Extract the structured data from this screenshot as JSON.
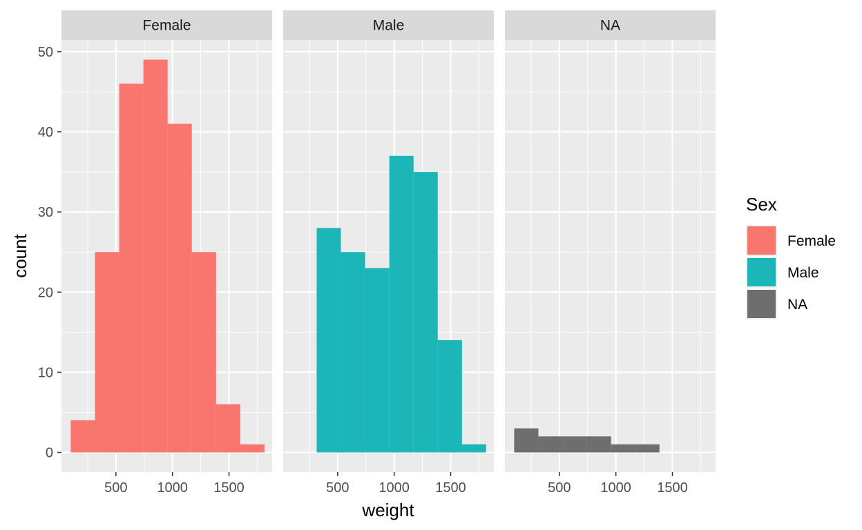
{
  "chart_data": {
    "type": "histogram",
    "facet_by": "Sex",
    "xlabel": "weight",
    "ylabel": "count",
    "xlim": [
      18,
      1882
    ],
    "ylim": [
      -2.45,
      51.45
    ],
    "x_ticks": [
      500,
      1000,
      1500
    ],
    "y_ticks": [
      0,
      10,
      20,
      30,
      40,
      50
    ],
    "bin_width": 214.3,
    "grid": true,
    "legend_title": "Sex",
    "legend_position": "right",
    "panels": [
      {
        "label": "Female",
        "color": "#F8766D",
        "bins": [
          {
            "x0": 100,
            "x1": 314.3,
            "count": 4
          },
          {
            "x0": 314.3,
            "x1": 528.6,
            "count": 25
          },
          {
            "x0": 528.6,
            "x1": 742.9,
            "count": 46
          },
          {
            "x0": 742.9,
            "x1": 957.1,
            "count": 49
          },
          {
            "x0": 957.1,
            "x1": 1171.4,
            "count": 41
          },
          {
            "x0": 1171.4,
            "x1": 1385.7,
            "count": 25
          },
          {
            "x0": 1385.7,
            "x1": 1600,
            "count": 6
          },
          {
            "x0": 1600,
            "x1": 1814.3,
            "count": 1
          }
        ]
      },
      {
        "label": "Male",
        "color": "#1CB5B8",
        "bins": [
          {
            "x0": 314.3,
            "x1": 528.6,
            "count": 28
          },
          {
            "x0": 528.6,
            "x1": 742.9,
            "count": 25
          },
          {
            "x0": 742.9,
            "x1": 957.1,
            "count": 23
          },
          {
            "x0": 957.1,
            "x1": 1171.4,
            "count": 37
          },
          {
            "x0": 1171.4,
            "x1": 1385.7,
            "count": 35
          },
          {
            "x0": 1385.7,
            "x1": 1600,
            "count": 14
          },
          {
            "x0": 1600,
            "x1": 1814.3,
            "count": 1
          }
        ]
      },
      {
        "label": "NA",
        "color": "#6E6E6E",
        "bins": [
          {
            "x0": 100,
            "x1": 314.3,
            "count": 3
          },
          {
            "x0": 314.3,
            "x1": 528.6,
            "count": 2
          },
          {
            "x0": 528.6,
            "x1": 742.9,
            "count": 2
          },
          {
            "x0": 742.9,
            "x1": 957.1,
            "count": 2
          },
          {
            "x0": 957.1,
            "x1": 1171.4,
            "count": 1
          },
          {
            "x0": 1171.4,
            "x1": 1385.7,
            "count": 1
          }
        ]
      }
    ],
    "legend": [
      {
        "label": "Female",
        "color": "#F8766D"
      },
      {
        "label": "Male",
        "color": "#1CB5B8"
      },
      {
        "label": "NA",
        "color": "#6E6E6E"
      }
    ]
  }
}
